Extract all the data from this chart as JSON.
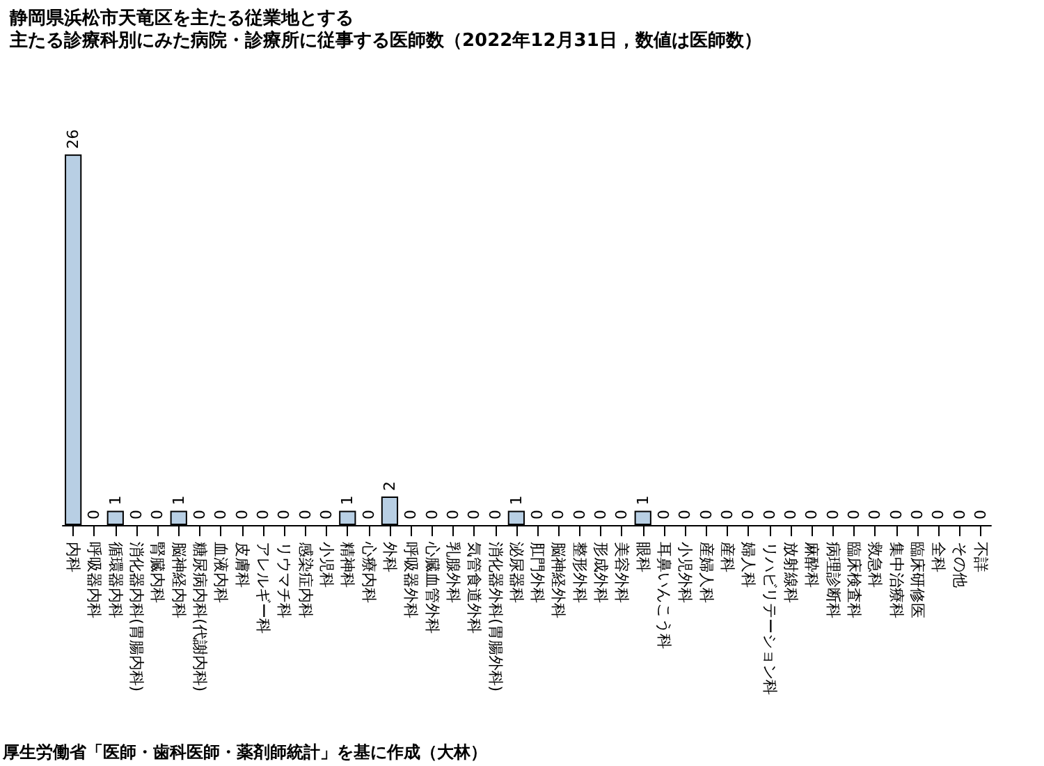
{
  "chart_data": {
    "type": "bar",
    "title": "静岡県浜松市天竜区を主たる従業地とする",
    "subtitle": "主たる診療科別にみた病院・診療所に従事する医師数（2022年12月31日，数値は医師数）",
    "categories": [
      "内科",
      "呼吸器内科",
      "循環器内科",
      "消化器内科(胃腸内科)",
      "腎臓内科",
      "脳神経内科",
      "糖尿病内科(代謝内科)",
      "血液内科",
      "皮膚科",
      "アレルギー科",
      "リウマチ科",
      "感染症内科",
      "小児科",
      "精神科",
      "心療内科",
      "外科",
      "呼吸器外科",
      "心臓血管外科",
      "乳腺外科",
      "気管食道外科",
      "消化器外科(胃腸外科)",
      "泌尿器科",
      "肛門外科",
      "脳神経外科",
      "整形外科",
      "形成外科",
      "美容外科",
      "眼科",
      "耳鼻いんこう科",
      "小児外科",
      "産婦人科",
      "産科",
      "婦人科",
      "リハビリテーション科",
      "放射線科",
      "麻酔科",
      "病理診断科",
      "臨床検査科",
      "救急科",
      "集中治療科",
      "臨床研修医",
      "全科",
      "その他",
      "不詳"
    ],
    "values": [
      26,
      0,
      1,
      0,
      0,
      1,
      0,
      0,
      0,
      0,
      0,
      0,
      0,
      1,
      0,
      2,
      0,
      0,
      0,
      0,
      0,
      1,
      0,
      0,
      0,
      0,
      0,
      1,
      0,
      0,
      0,
      0,
      0,
      0,
      0,
      0,
      0,
      0,
      0,
      0,
      0,
      0,
      0,
      0
    ],
    "color": "#b8cfe4",
    "data_labels": true,
    "grid": false,
    "annotations": [
      "厚生労働省「医師・歯科医師・薬剤師統計」を基に作成（大林）"
    ]
  }
}
